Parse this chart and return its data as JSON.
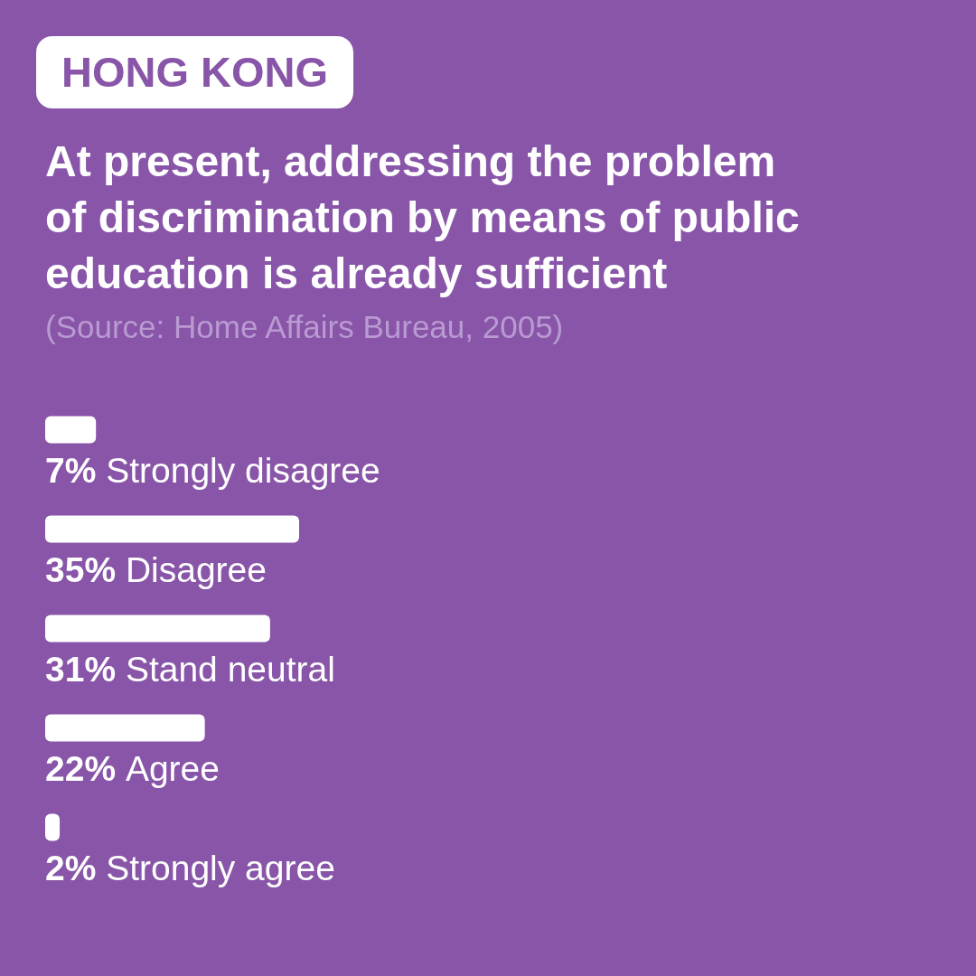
{
  "chart_data": {
    "type": "bar",
    "orientation": "horizontal",
    "title": "At present, addressing the problem of discrimination by means of public education is already sufficient",
    "annotations": [
      "HONG KONG",
      "(Source: Home Affairs Bureau, 2005)"
    ],
    "categories": [
      "Strongly disagree",
      "Disagree",
      "Stand neutral",
      "Agree",
      "Strongly agree"
    ],
    "values": [
      7,
      35,
      31,
      22,
      2
    ],
    "value_labels": [
      "7%",
      "35%",
      "31%",
      "22%",
      "2%"
    ],
    "color": "#ffffff"
  }
}
